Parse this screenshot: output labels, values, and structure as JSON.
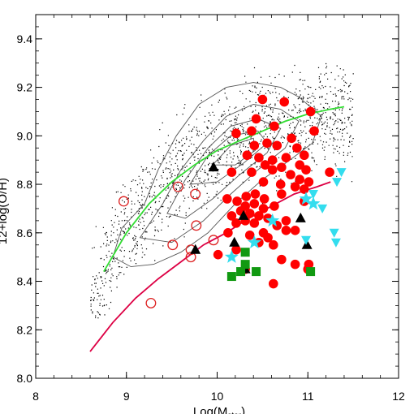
{
  "chart_data": {
    "type": "scatter",
    "title": "",
    "xlabel": "Log(M",
    "xlabel_sub": "star",
    "xlabel_close": ")",
    "ylabel": "12+log(O/H)",
    "xlim": [
      8,
      12
    ],
    "ylim": [
      8.0,
      9.5
    ],
    "x_ticks": [
      8,
      9,
      10,
      11,
      12
    ],
    "x_tick_labels": [
      "8",
      "9",
      "10",
      "11",
      "12"
    ],
    "y_ticks": [
      8.0,
      8.2,
      8.4,
      8.6,
      8.8,
      9.0,
      9.2,
      9.4
    ],
    "y_tick_labels": [
      "8.0",
      "8.2",
      "8.4",
      "8.6",
      "8.8",
      "9.0",
      "9.2",
      "9.4"
    ],
    "grid": false,
    "legend": "none",
    "colors": {
      "filled_circles": "#ff0000",
      "open_circles": "#dd2222",
      "triangles": "#000000",
      "stars": "#33ddee",
      "down_triangles": "#33ddee",
      "squares": "#119911",
      "green_line": "#33dd33",
      "crimson_line": "#dd0044",
      "contours": "#555555",
      "background_dots": "#000000"
    },
    "series": [
      {
        "marker": "filled-circle",
        "points": [
          [
            10.5,
            9.15
          ],
          [
            10.74,
            9.14
          ],
          [
            11.03,
            9.1
          ],
          [
            10.43,
            9.07
          ],
          [
            10.63,
            9.04
          ],
          [
            10.21,
            9.01
          ],
          [
            10.38,
            9.02
          ],
          [
            11.07,
            9.02
          ],
          [
            10.82,
            8.99
          ],
          [
            10.41,
            8.96
          ],
          [
            10.55,
            8.97
          ],
          [
            10.88,
            8.95
          ],
          [
            10.66,
            8.96
          ],
          [
            10.33,
            8.92
          ],
          [
            10.46,
            8.91
          ],
          [
            10.61,
            8.9
          ],
          [
            10.76,
            8.91
          ],
          [
            10.96,
            8.92
          ],
          [
            10.53,
            8.88
          ],
          [
            10.71,
            8.87
          ],
          [
            10.91,
            8.88
          ],
          [
            10.16,
            8.85
          ],
          [
            10.38,
            8.85
          ],
          [
            10.61,
            8.86
          ],
          [
            10.81,
            8.84
          ],
          [
            10.98,
            8.86
          ],
          [
            11.24,
            8.85
          ],
          [
            10.91,
            8.82
          ],
          [
            11.01,
            8.81
          ],
          [
            10.51,
            8.81
          ],
          [
            10.7,
            8.8
          ],
          [
            10.86,
            8.79
          ],
          [
            10.96,
            8.78
          ],
          [
            10.71,
            8.76
          ],
          [
            10.32,
            8.75
          ],
          [
            10.42,
            8.76
          ],
          [
            10.52,
            8.74
          ],
          [
            10.11,
            8.74
          ],
          [
            10.22,
            8.73
          ],
          [
            10.31,
            8.71
          ],
          [
            10.41,
            8.72
          ],
          [
            10.51,
            8.7
          ],
          [
            10.63,
            8.71
          ],
          [
            10.26,
            8.69
          ],
          [
            10.36,
            8.68
          ],
          [
            10.46,
            8.67
          ],
          [
            10.16,
            8.67
          ],
          [
            10.56,
            8.66
          ],
          [
            10.31,
            8.65
          ],
          [
            10.41,
            8.64
          ],
          [
            10.21,
            8.64
          ],
          [
            10.66,
            8.63
          ],
          [
            10.76,
            8.61
          ],
          [
            10.12,
            8.6
          ],
          [
            10.51,
            8.6
          ],
          [
            10.36,
            8.59
          ],
          [
            10.86,
            8.61
          ],
          [
            10.46,
            8.56
          ],
          [
            10.62,
            8.55
          ],
          [
            10.21,
            8.53
          ],
          [
            10.01,
            8.51
          ],
          [
            10.71,
            8.49
          ],
          [
            10.86,
            8.47
          ],
          [
            11.01,
            8.47
          ],
          [
            11.0,
            8.45
          ],
          [
            10.31,
            8.45
          ],
          [
            10.62,
            8.39
          ],
          [
            10.56,
            8.58
          ],
          [
            10.76,
            8.65
          ],
          [
            10.96,
            8.73
          ]
        ]
      },
      {
        "marker": "open-circle",
        "points": [
          [
            8.97,
            8.73
          ],
          [
            9.57,
            8.79
          ],
          [
            9.76,
            8.76
          ],
          [
            9.77,
            8.63
          ],
          [
            9.51,
            8.55
          ],
          [
            9.71,
            8.53
          ],
          [
            9.71,
            8.5
          ],
          [
            9.96,
            8.57
          ],
          [
            9.27,
            8.31
          ]
        ]
      },
      {
        "marker": "triangle-up",
        "points": [
          [
            9.96,
            8.87
          ],
          [
            10.29,
            8.67
          ],
          [
            10.92,
            8.66
          ],
          [
            10.19,
            8.56
          ],
          [
            10.99,
            8.55
          ],
          [
            9.76,
            8.53
          ],
          [
            10.31,
            8.45
          ]
        ]
      },
      {
        "marker": "star",
        "points": [
          [
            10.98,
            8.74
          ],
          [
            11.06,
            8.72
          ],
          [
            10.61,
            8.65
          ],
          [
            10.41,
            8.56
          ],
          [
            10.16,
            8.5
          ]
        ]
      },
      {
        "marker": "triangle-down",
        "points": [
          [
            11.37,
            8.85
          ],
          [
            11.32,
            8.81
          ],
          [
            11.06,
            8.76
          ],
          [
            11.16,
            8.7
          ],
          [
            11.29,
            8.6
          ],
          [
            11.31,
            8.56
          ],
          [
            10.98,
            8.57
          ]
        ]
      },
      {
        "marker": "square",
        "points": [
          [
            10.31,
            8.52
          ],
          [
            10.31,
            8.47
          ],
          [
            10.43,
            8.44
          ],
          [
            11.03,
            8.44
          ],
          [
            10.16,
            8.42
          ],
          [
            10.26,
            8.44
          ]
        ]
      }
    ],
    "curves": [
      {
        "kind": "green",
        "points": [
          [
            8.75,
            8.44
          ],
          [
            9.0,
            8.6
          ],
          [
            9.25,
            8.72
          ],
          [
            9.5,
            8.81
          ],
          [
            9.75,
            8.88
          ],
          [
            10.0,
            8.94
          ],
          [
            10.25,
            8.98
          ],
          [
            10.5,
            9.02
          ],
          [
            10.75,
            9.06
          ],
          [
            11.0,
            9.09
          ],
          [
            11.25,
            9.11
          ],
          [
            11.4,
            9.12
          ]
        ]
      },
      {
        "kind": "crimson",
        "points": [
          [
            8.6,
            8.11
          ],
          [
            8.85,
            8.23
          ],
          [
            9.1,
            8.33
          ],
          [
            9.35,
            8.41
          ],
          [
            9.6,
            8.48
          ],
          [
            9.85,
            8.55
          ],
          [
            10.1,
            8.6
          ],
          [
            10.35,
            8.66
          ],
          [
            10.6,
            8.71
          ],
          [
            10.85,
            8.76
          ],
          [
            11.1,
            8.79
          ],
          [
            11.25,
            8.81
          ]
        ]
      }
    ],
    "contours": [
      [
        [
          8.85,
          8.5
        ],
        [
          8.95,
          8.62
        ],
        [
          9.2,
          8.72
        ],
        [
          9.35,
          8.86
        ],
        [
          9.55,
          9.0
        ],
        [
          9.8,
          9.13
        ],
        [
          10.1,
          9.2
        ],
        [
          10.4,
          9.22
        ],
        [
          10.7,
          9.2
        ],
        [
          10.9,
          9.16
        ],
        [
          11.15,
          9.08
        ],
        [
          11.05,
          8.97
        ],
        [
          10.8,
          8.9
        ],
        [
          10.5,
          8.82
        ],
        [
          10.2,
          8.72
        ],
        [
          9.9,
          8.6
        ],
        [
          9.6,
          8.52
        ],
        [
          9.3,
          8.47
        ],
        [
          9.05,
          8.46
        ]
      ],
      [
        [
          9.15,
          8.58
        ],
        [
          9.4,
          8.72
        ],
        [
          9.6,
          8.86
        ],
        [
          9.85,
          8.98
        ],
        [
          10.1,
          9.08
        ],
        [
          10.4,
          9.13
        ],
        [
          10.7,
          9.11
        ],
        [
          10.9,
          9.06
        ],
        [
          10.75,
          8.95
        ],
        [
          10.45,
          8.86
        ],
        [
          10.15,
          8.76
        ],
        [
          9.85,
          8.65
        ],
        [
          9.5,
          8.56
        ]
      ],
      [
        [
          9.45,
          8.68
        ],
        [
          9.65,
          8.82
        ],
        [
          9.9,
          8.95
        ],
        [
          10.15,
          9.04
        ],
        [
          10.45,
          9.07
        ],
        [
          10.7,
          9.03
        ],
        [
          10.55,
          8.93
        ],
        [
          10.25,
          8.84
        ],
        [
          9.95,
          8.74
        ],
        [
          9.65,
          8.66
        ]
      ],
      [
        [
          9.7,
          8.8
        ],
        [
          9.9,
          8.92
        ],
        [
          10.15,
          9.0
        ],
        [
          10.45,
          9.02
        ],
        [
          10.55,
          8.97
        ],
        [
          10.3,
          8.89
        ],
        [
          10.0,
          8.81
        ]
      ],
      [
        [
          9.95,
          8.88
        ],
        [
          10.15,
          8.96
        ],
        [
          10.4,
          8.99
        ],
        [
          10.42,
          8.94
        ],
        [
          10.2,
          8.88
        ]
      ]
    ]
  }
}
